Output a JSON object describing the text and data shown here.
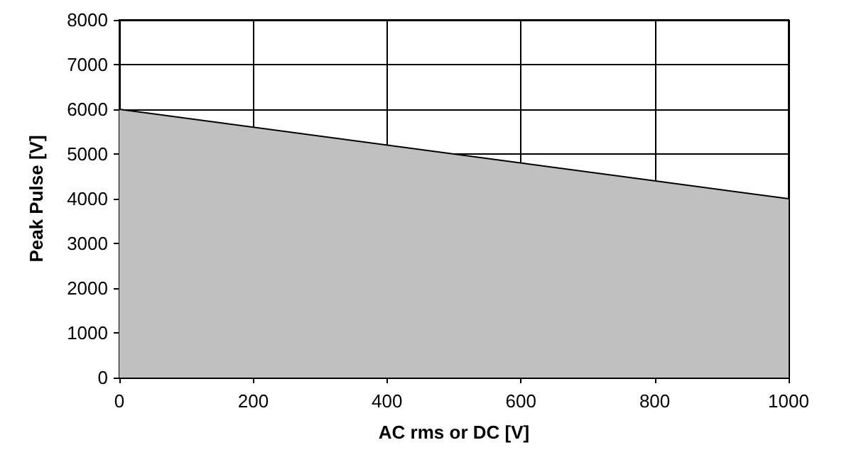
{
  "chart_data": {
    "type": "area",
    "xlabel": "AC rms or DC [V]",
    "ylabel": "Peak Pulse [V]",
    "x": [
      0,
      1000
    ],
    "series": [
      {
        "color": "#c0c0c0",
        "values": [
          6000,
          4000
        ]
      }
    ],
    "xlim": [
      0,
      1000
    ],
    "xticks": [
      0,
      200,
      400,
      600,
      800,
      1000
    ],
    "ylim": [
      0,
      8000
    ],
    "yticks": [
      0,
      1000,
      2000,
      3000,
      4000,
      5000,
      6000,
      7000,
      8000
    ],
    "grid": true,
    "marker": "none",
    "line_style": "solid"
  }
}
